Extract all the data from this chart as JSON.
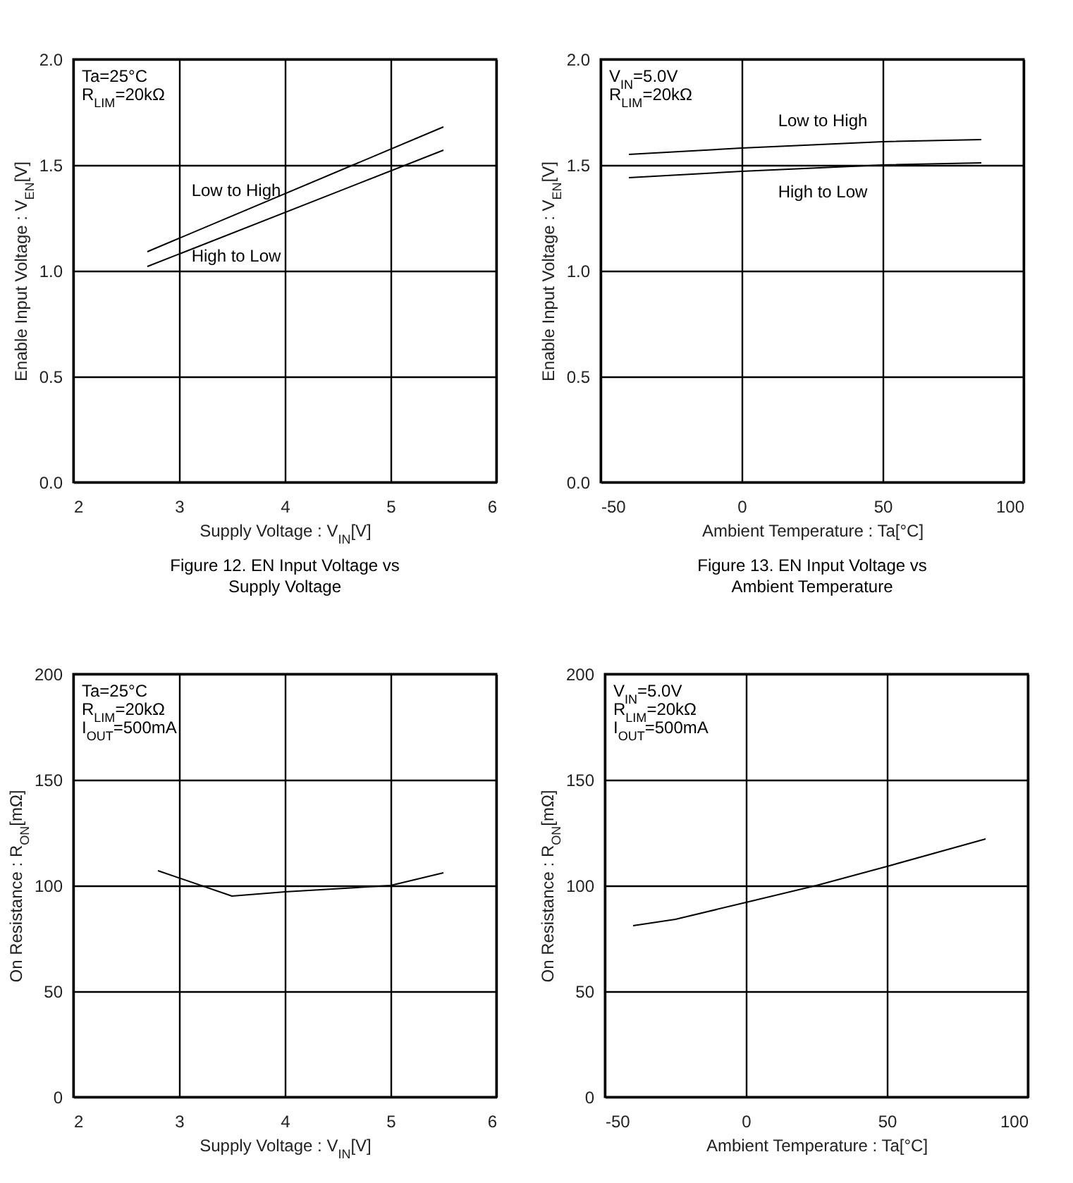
{
  "chart_data": [
    {
      "type": "line",
      "title": "Figure 12. EN Input Voltage vs\nSupply Voltage",
      "xlabel": "Supply Voltage : V$_{IN}$[V]",
      "ylabel": "Enable Input Voltage : V$_{EN}$[V]",
      "annotations": [
        "Ta=25°C",
        "R$_{LIM}$=20kΩ"
      ],
      "series": [
        {
          "name": "Low to High",
          "color": "#000000",
          "x": [
            2.7,
            5.5
          ],
          "values": [
            1.09,
            1.68
          ]
        },
        {
          "name": "High to Low",
          "color": "#000000",
          "x": [
            2.7,
            5.5
          ],
          "values": [
            1.02,
            1.57
          ]
        }
      ],
      "xlim": [
        2,
        6
      ],
      "xticks": [
        2,
        3,
        4,
        5,
        6
      ],
      "ylim": [
        0,
        2
      ],
      "yticks": [
        {
          "value": 0,
          "label": "0.0"
        },
        {
          "value": 0.5,
          "label": "0.5"
        },
        {
          "value": 1,
          "label": "1.0"
        },
        {
          "value": 1.5,
          "label": "1.5"
        },
        {
          "value": 2,
          "label": "2.0"
        }
      ],
      "grid": true,
      "legend": false
    },
    {
      "type": "line",
      "title": "Figure 13. EN Input Voltage vs\nAmbient Temperature",
      "xlabel": "Ambient Temperature : Ta[°C]",
      "ylabel": "Enable Input Voltage : V$_{EN}$[V]",
      "annotations": [
        "V$_{IN}$=5.0V",
        "R$_{LIM}$=20kΩ"
      ],
      "series": [
        {
          "name": "Low to High",
          "color": "#000000",
          "x": [
            -40,
            0,
            50,
            85
          ],
          "values": [
            1.55,
            1.58,
            1.61,
            1.62
          ]
        },
        {
          "name": "High to Low",
          "color": "#000000",
          "x": [
            -40,
            0,
            50,
            85
          ],
          "values": [
            1.44,
            1.47,
            1.5,
            1.51
          ]
        }
      ],
      "xlim": [
        -50,
        100
      ],
      "xticks": [
        -50,
        0,
        50,
        100
      ],
      "ylim": [
        0,
        2
      ],
      "yticks": [
        {
          "value": 0,
          "label": "0.0"
        },
        {
          "value": 0.5,
          "label": "0.5"
        },
        {
          "value": 1,
          "label": "1.0"
        },
        {
          "value": 1.5,
          "label": "1.5"
        },
        {
          "value": 2,
          "label": "2.0"
        }
      ],
      "grid": true,
      "legend": false
    },
    {
      "type": "line",
      "xlabel": "Supply Voltage : V$_{IN}$[V]",
      "ylabel": "On Resistance : R$_{ON}$[mΩ]",
      "annotations": [
        "Ta=25°C",
        "R$_{LIM}$=20kΩ",
        "I$_{OUT}$=500mA"
      ],
      "series": [
        {
          "color": "#000000",
          "x": [
            2.8,
            3.5,
            4,
            5,
            5.5
          ],
          "values": [
            107,
            95,
            97,
            100,
            106
          ]
        }
      ],
      "xlim": [
        2,
        6
      ],
      "xticks": [
        2,
        3,
        4,
        5,
        6
      ],
      "ylim": [
        0,
        200
      ],
      "yticks": [
        0,
        50,
        100,
        150,
        200
      ],
      "grid": true,
      "legend": false
    },
    {
      "type": "line",
      "xlabel": "Ambient Temperature : Ta[°C]",
      "ylabel": "On Resistance : R$_{ON}$[mΩ]",
      "annotations": [
        "V$_{IN}$=5.0V",
        "R$_{LIM}$=20kΩ",
        "I$_{OUT}$=500mA"
      ],
      "series": [
        {
          "color": "#000000",
          "x": [
            -40,
            -25,
            0,
            25,
            50,
            85
          ],
          "values": [
            81,
            84,
            92,
            100,
            109,
            122
          ]
        }
      ],
      "xlim": [
        -50,
        100
      ],
      "xticks": [
        -50,
        0,
        50,
        100
      ],
      "ylim": [
        0,
        200
      ],
      "yticks": [
        0,
        50,
        100,
        150,
        200
      ],
      "grid": true,
      "legend": false
    }
  ]
}
